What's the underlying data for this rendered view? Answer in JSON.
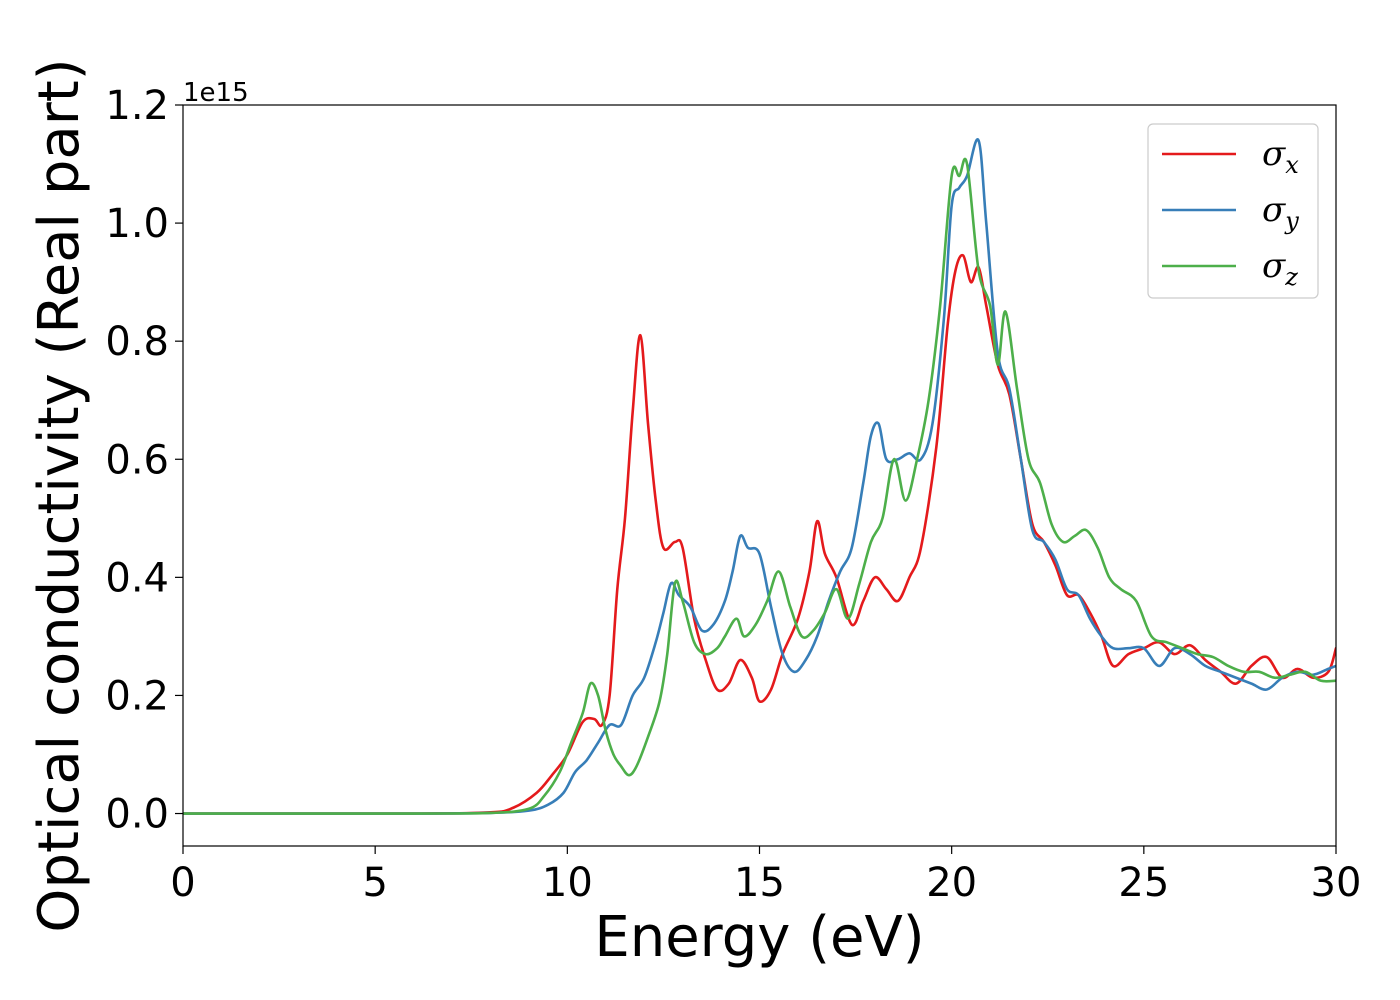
{
  "chart_data": {
    "type": "line",
    "title": "",
    "xlabel": "Energy (eV)",
    "ylabel": "Optical conductivity (Real part)",
    "y_offset_label": "1e15",
    "xlim": [
      0,
      30
    ],
    "ylim": [
      -0.055,
      1.2
    ],
    "x_ticks": [
      0,
      5,
      10,
      15,
      20,
      25,
      30
    ],
    "x_tick_labels": [
      "0",
      "5",
      "10",
      "15",
      "20",
      "25",
      "30"
    ],
    "y_ticks": [
      0.0,
      0.2,
      0.4,
      0.6,
      0.8,
      1.0,
      1.2
    ],
    "y_tick_labels": [
      "0.0",
      "0.2",
      "0.4",
      "0.6",
      "0.8",
      "1.0",
      "1.2"
    ],
    "grid": false,
    "legend_position": "top-right",
    "series": [
      {
        "name": "σx",
        "symbol": "σ",
        "subscript": "x",
        "color": "#e41a1c",
        "points": [
          [
            0,
            0
          ],
          [
            6,
            0
          ],
          [
            8,
            0.002
          ],
          [
            8.6,
            0.01
          ],
          [
            9.2,
            0.035
          ],
          [
            9.6,
            0.065
          ],
          [
            10,
            0.1
          ],
          [
            10.4,
            0.155
          ],
          [
            10.7,
            0.16
          ],
          [
            10.9,
            0.15
          ],
          [
            11.1,
            0.2
          ],
          [
            11.3,
            0.38
          ],
          [
            11.5,
            0.5
          ],
          [
            11.7,
            0.68
          ],
          [
            11.9,
            0.81
          ],
          [
            12.1,
            0.66
          ],
          [
            12.3,
            0.53
          ],
          [
            12.5,
            0.45
          ],
          [
            12.8,
            0.46
          ],
          [
            13,
            0.45
          ],
          [
            13.3,
            0.33
          ],
          [
            13.6,
            0.26
          ],
          [
            13.9,
            0.21
          ],
          [
            14.2,
            0.22
          ],
          [
            14.5,
            0.26
          ],
          [
            14.8,
            0.23
          ],
          [
            15,
            0.19
          ],
          [
            15.3,
            0.21
          ],
          [
            15.6,
            0.27
          ],
          [
            16,
            0.33
          ],
          [
            16.3,
            0.41
          ],
          [
            16.5,
            0.495
          ],
          [
            16.7,
            0.44
          ],
          [
            17,
            0.4
          ],
          [
            17.4,
            0.32
          ],
          [
            17.7,
            0.36
          ],
          [
            18,
            0.4
          ],
          [
            18.3,
            0.38
          ],
          [
            18.6,
            0.36
          ],
          [
            18.9,
            0.4
          ],
          [
            19.2,
            0.45
          ],
          [
            19.6,
            0.62
          ],
          [
            19.9,
            0.83
          ],
          [
            20.1,
            0.92
          ],
          [
            20.3,
            0.945
          ],
          [
            20.5,
            0.9
          ],
          [
            20.7,
            0.925
          ],
          [
            20.9,
            0.86
          ],
          [
            21.2,
            0.76
          ],
          [
            21.5,
            0.71
          ],
          [
            21.8,
            0.6
          ],
          [
            22.1,
            0.49
          ],
          [
            22.4,
            0.46
          ],
          [
            22.7,
            0.42
          ],
          [
            23,
            0.37
          ],
          [
            23.3,
            0.37
          ],
          [
            23.6,
            0.34
          ],
          [
            23.9,
            0.3
          ],
          [
            24.2,
            0.25
          ],
          [
            24.6,
            0.27
          ],
          [
            25,
            0.28
          ],
          [
            25.4,
            0.29
          ],
          [
            25.8,
            0.27
          ],
          [
            26.2,
            0.285
          ],
          [
            26.6,
            0.26
          ],
          [
            27,
            0.24
          ],
          [
            27.4,
            0.22
          ],
          [
            27.8,
            0.25
          ],
          [
            28.2,
            0.265
          ],
          [
            28.6,
            0.23
          ],
          [
            29,
            0.245
          ],
          [
            29.4,
            0.23
          ],
          [
            29.8,
            0.24
          ],
          [
            30,
            0.28
          ]
        ]
      },
      {
        "name": "σy",
        "symbol": "σ",
        "subscript": "y",
        "color": "#377eb8",
        "points": [
          [
            0,
            0
          ],
          [
            6,
            0
          ],
          [
            8,
            0.001
          ],
          [
            9,
            0.005
          ],
          [
            9.5,
            0.015
          ],
          [
            9.9,
            0.035
          ],
          [
            10.2,
            0.07
          ],
          [
            10.5,
            0.09
          ],
          [
            10.8,
            0.12
          ],
          [
            11.1,
            0.15
          ],
          [
            11.4,
            0.15
          ],
          [
            11.7,
            0.2
          ],
          [
            12,
            0.23
          ],
          [
            12.3,
            0.29
          ],
          [
            12.5,
            0.34
          ],
          [
            12.7,
            0.39
          ],
          [
            12.9,
            0.37
          ],
          [
            13.2,
            0.35
          ],
          [
            13.5,
            0.31
          ],
          [
            13.8,
            0.32
          ],
          [
            14.1,
            0.36
          ],
          [
            14.3,
            0.41
          ],
          [
            14.5,
            0.47
          ],
          [
            14.7,
            0.45
          ],
          [
            15,
            0.44
          ],
          [
            15.3,
            0.35
          ],
          [
            15.6,
            0.27
          ],
          [
            15.9,
            0.24
          ],
          [
            16.2,
            0.26
          ],
          [
            16.5,
            0.3
          ],
          [
            16.8,
            0.36
          ],
          [
            17.1,
            0.41
          ],
          [
            17.4,
            0.45
          ],
          [
            17.7,
            0.56
          ],
          [
            17.9,
            0.64
          ],
          [
            18.1,
            0.66
          ],
          [
            18.3,
            0.6
          ],
          [
            18.6,
            0.6
          ],
          [
            18.9,
            0.61
          ],
          [
            19.2,
            0.6
          ],
          [
            19.5,
            0.66
          ],
          [
            19.8,
            0.84
          ],
          [
            20,
            1.03
          ],
          [
            20.2,
            1.06
          ],
          [
            20.4,
            1.08
          ],
          [
            20.7,
            1.14
          ],
          [
            20.9,
            1.0
          ],
          [
            21.2,
            0.78
          ],
          [
            21.5,
            0.72
          ],
          [
            21.8,
            0.6
          ],
          [
            22.1,
            0.48
          ],
          [
            22.4,
            0.46
          ],
          [
            22.7,
            0.43
          ],
          [
            23,
            0.38
          ],
          [
            23.3,
            0.37
          ],
          [
            23.6,
            0.33
          ],
          [
            23.9,
            0.3
          ],
          [
            24.2,
            0.28
          ],
          [
            24.6,
            0.28
          ],
          [
            25,
            0.28
          ],
          [
            25.4,
            0.25
          ],
          [
            25.8,
            0.28
          ],
          [
            26.2,
            0.27
          ],
          [
            26.6,
            0.25
          ],
          [
            27,
            0.24
          ],
          [
            27.4,
            0.23
          ],
          [
            27.8,
            0.22
          ],
          [
            28.2,
            0.21
          ],
          [
            28.6,
            0.23
          ],
          [
            29,
            0.24
          ],
          [
            29.4,
            0.235
          ],
          [
            29.8,
            0.245
          ],
          [
            30,
            0.25
          ]
        ]
      },
      {
        "name": "σz",
        "symbol": "σ",
        "subscript": "z",
        "color": "#4daf4a",
        "points": [
          [
            0,
            0
          ],
          [
            6,
            0
          ],
          [
            8,
            0.001
          ],
          [
            9,
            0.008
          ],
          [
            9.4,
            0.03
          ],
          [
            9.8,
            0.07
          ],
          [
            10.1,
            0.12
          ],
          [
            10.4,
            0.17
          ],
          [
            10.6,
            0.22
          ],
          [
            10.8,
            0.2
          ],
          [
            11,
            0.14
          ],
          [
            11.2,
            0.1
          ],
          [
            11.4,
            0.08
          ],
          [
            11.6,
            0.065
          ],
          [
            11.8,
            0.08
          ],
          [
            12.1,
            0.13
          ],
          [
            12.4,
            0.19
          ],
          [
            12.6,
            0.27
          ],
          [
            12.8,
            0.39
          ],
          [
            13,
            0.36
          ],
          [
            13.3,
            0.29
          ],
          [
            13.6,
            0.27
          ],
          [
            13.9,
            0.28
          ],
          [
            14.1,
            0.3
          ],
          [
            14.4,
            0.33
          ],
          [
            14.6,
            0.3
          ],
          [
            14.9,
            0.32
          ],
          [
            15.2,
            0.36
          ],
          [
            15.5,
            0.41
          ],
          [
            15.8,
            0.35
          ],
          [
            16.1,
            0.3
          ],
          [
            16.4,
            0.31
          ],
          [
            16.7,
            0.34
          ],
          [
            17,
            0.38
          ],
          [
            17.3,
            0.33
          ],
          [
            17.6,
            0.39
          ],
          [
            17.9,
            0.46
          ],
          [
            18.2,
            0.5
          ],
          [
            18.5,
            0.6
          ],
          [
            18.8,
            0.53
          ],
          [
            19.1,
            0.6
          ],
          [
            19.4,
            0.7
          ],
          [
            19.7,
            0.86
          ],
          [
            20,
            1.08
          ],
          [
            20.2,
            1.08
          ],
          [
            20.4,
            1.1
          ],
          [
            20.7,
            0.92
          ],
          [
            21,
            0.86
          ],
          [
            21.2,
            0.76
          ],
          [
            21.4,
            0.85
          ],
          [
            21.7,
            0.72
          ],
          [
            22,
            0.6
          ],
          [
            22.3,
            0.56
          ],
          [
            22.6,
            0.49
          ],
          [
            22.9,
            0.46
          ],
          [
            23.2,
            0.47
          ],
          [
            23.5,
            0.48
          ],
          [
            23.8,
            0.45
          ],
          [
            24.1,
            0.4
          ],
          [
            24.4,
            0.38
          ],
          [
            24.8,
            0.36
          ],
          [
            25.2,
            0.3
          ],
          [
            25.6,
            0.29
          ],
          [
            26,
            0.28
          ],
          [
            26.4,
            0.27
          ],
          [
            26.8,
            0.265
          ],
          [
            27.2,
            0.25
          ],
          [
            27.6,
            0.24
          ],
          [
            28,
            0.24
          ],
          [
            28.4,
            0.23
          ],
          [
            28.8,
            0.235
          ],
          [
            29.2,
            0.24
          ],
          [
            29.6,
            0.225
          ],
          [
            30,
            0.225
          ]
        ]
      }
    ]
  }
}
